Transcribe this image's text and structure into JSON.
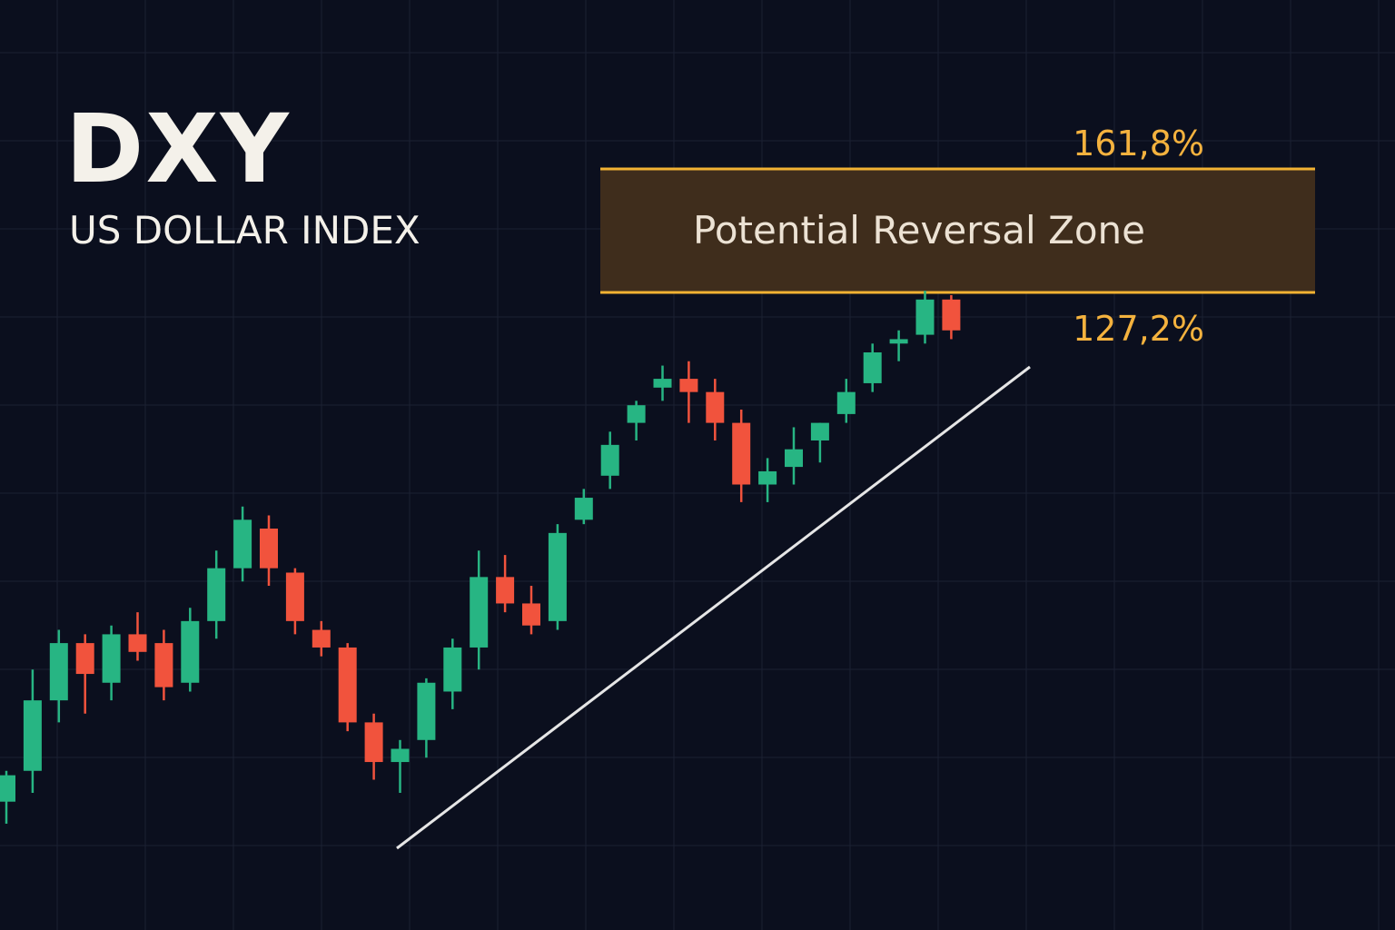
{
  "header": {
    "title": "DXY",
    "subtitle": "US DOLLAR INDEX"
  },
  "colors": {
    "background": "#0b0f1e",
    "grid": "#1b2032",
    "bullish": "#27b583",
    "bearish": "#f1533d",
    "zone_fill": "#3f2d1c",
    "zone_border": "#f2b233",
    "fib_label": "#f4b23e",
    "trendline": "#e6e6e6",
    "zone_text": "#ece2d4"
  },
  "chart_data": {
    "type": "candlestick",
    "title": "",
    "grid": true,
    "reversal_zone": {
      "label": "Potential Reversal Zone",
      "upper_fib": "161,8%",
      "lower_fib": "127,2%"
    },
    "trendline": true,
    "candles": [
      {
        "o": 9.0,
        "h": 12.5,
        "l": 6.5,
        "c": 12.0
      },
      {
        "o": 12.5,
        "h": 24.0,
        "l": 10.0,
        "c": 20.5
      },
      {
        "o": 20.5,
        "h": 28.5,
        "l": 18.0,
        "c": 27.0
      },
      {
        "o": 27.0,
        "h": 28.0,
        "l": 19.0,
        "c": 23.5
      },
      {
        "o": 22.5,
        "h": 29.0,
        "l": 20.5,
        "c": 28.0
      },
      {
        "o": 28.0,
        "h": 30.5,
        "l": 25.0,
        "c": 26.0
      },
      {
        "o": 27.0,
        "h": 28.5,
        "l": 20.5,
        "c": 22.0
      },
      {
        "o": 22.5,
        "h": 31.0,
        "l": 21.5,
        "c": 29.5
      },
      {
        "o": 29.5,
        "h": 37.5,
        "l": 27.5,
        "c": 35.5
      },
      {
        "o": 35.5,
        "h": 42.5,
        "l": 34.0,
        "c": 41.0
      },
      {
        "o": 40.0,
        "h": 41.5,
        "l": 33.5,
        "c": 35.5
      },
      {
        "o": 35.0,
        "h": 35.5,
        "l": 28.0,
        "c": 29.5
      },
      {
        "o": 28.5,
        "h": 29.5,
        "l": 25.5,
        "c": 26.5
      },
      {
        "o": 26.5,
        "h": 27.0,
        "l": 17.0,
        "c": 18.0
      },
      {
        "o": 18.0,
        "h": 19.0,
        "l": 11.5,
        "c": 13.5
      },
      {
        "o": 13.5,
        "h": 16.0,
        "l": 10.0,
        "c": 15.0
      },
      {
        "o": 16.0,
        "h": 23.0,
        "l": 14.0,
        "c": 22.5
      },
      {
        "o": 21.5,
        "h": 27.5,
        "l": 19.5,
        "c": 26.5
      },
      {
        "o": 26.5,
        "h": 37.5,
        "l": 24.0,
        "c": 34.5
      },
      {
        "o": 34.5,
        "h": 37.0,
        "l": 30.5,
        "c": 31.5
      },
      {
        "o": 31.5,
        "h": 33.5,
        "l": 28.0,
        "c": 29.0
      },
      {
        "o": 29.5,
        "h": 40.5,
        "l": 28.5,
        "c": 39.5
      },
      {
        "o": 41.0,
        "h": 44.5,
        "l": 40.5,
        "c": 43.5
      },
      {
        "o": 46.0,
        "h": 51.0,
        "l": 44.5,
        "c": 49.5
      },
      {
        "o": 52.0,
        "h": 54.5,
        "l": 50.0,
        "c": 54.0
      },
      {
        "o": 56.0,
        "h": 58.5,
        "l": 54.5,
        "c": 57.0
      },
      {
        "o": 57.0,
        "h": 59.0,
        "l": 52.0,
        "c": 55.5
      },
      {
        "o": 55.5,
        "h": 57.0,
        "l": 50.0,
        "c": 52.0
      },
      {
        "o": 52.0,
        "h": 53.5,
        "l": 43.0,
        "c": 45.0
      },
      {
        "o": 45.0,
        "h": 48.0,
        "l": 43.0,
        "c": 46.5
      },
      {
        "o": 47.0,
        "h": 51.5,
        "l": 45.0,
        "c": 49.0
      },
      {
        "o": 50.0,
        "h": 52.0,
        "l": 47.5,
        "c": 52.0
      },
      {
        "o": 53.0,
        "h": 57.0,
        "l": 52.0,
        "c": 55.5
      },
      {
        "o": 56.5,
        "h": 61.0,
        "l": 55.5,
        "c": 60.0
      },
      {
        "o": 61.0,
        "h": 62.5,
        "l": 59.0,
        "c": 61.5
      },
      {
        "o": 62.0,
        "h": 67.0,
        "l": 61.0,
        "c": 66.0
      },
      {
        "o": 66.0,
        "h": 66.5,
        "l": 61.5,
        "c": 62.5
      }
    ]
  }
}
